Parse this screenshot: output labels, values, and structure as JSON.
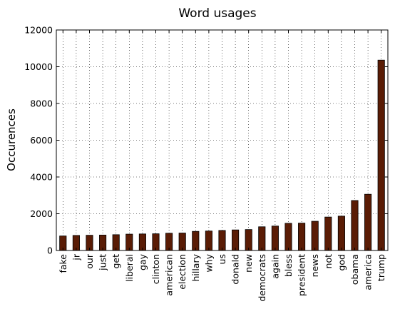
{
  "chart_data": {
    "type": "bar",
    "title": "Word usages",
    "xlabel": "",
    "ylabel": "Occurences",
    "ylim": [
      0,
      12000
    ],
    "yticks": [
      0,
      2000,
      4000,
      6000,
      8000,
      10000,
      12000
    ],
    "grid": true,
    "legend": "none",
    "bar_color": "#5a1c05",
    "categories": [
      "fake",
      "jr",
      "our",
      "just",
      "get",
      "liberal",
      "gay",
      "clinton",
      "american",
      "election",
      "hillary",
      "why",
      "us",
      "donald",
      "new",
      "democrats",
      "again",
      "bless",
      "president",
      "news",
      "not",
      "god",
      "obama",
      "america",
      "trump"
    ],
    "values": [
      790,
      820,
      830,
      840,
      860,
      890,
      900,
      910,
      940,
      950,
      1040,
      1060,
      1090,
      1120,
      1140,
      1290,
      1330,
      1480,
      1490,
      1590,
      1820,
      1870,
      2720,
      3060,
      10360
    ]
  }
}
